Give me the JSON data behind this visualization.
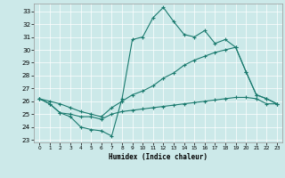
{
  "xlabel": "Humidex (Indice chaleur)",
  "bg_color": "#cce9e9",
  "grid_color": "#ffffff",
  "line_color": "#1a7a6e",
  "xlim": [
    -0.5,
    23.5
  ],
  "ylim": [
    22.8,
    33.6
  ],
  "xticks": [
    0,
    1,
    2,
    3,
    4,
    5,
    6,
    7,
    8,
    9,
    10,
    11,
    12,
    13,
    14,
    15,
    16,
    17,
    18,
    19,
    20,
    21,
    22,
    23
  ],
  "yticks": [
    23,
    24,
    25,
    26,
    27,
    28,
    29,
    30,
    31,
    32,
    33
  ],
  "series1_x": [
    0,
    1,
    2,
    3,
    4,
    5,
    6,
    7,
    8,
    9,
    10,
    11,
    12,
    13,
    14,
    15,
    16,
    17,
    18,
    19,
    20,
    21,
    22,
    23
  ],
  "series1_y": [
    26.2,
    25.8,
    25.1,
    24.8,
    24.0,
    23.8,
    23.7,
    23.3,
    26.2,
    30.8,
    31.0,
    32.5,
    33.3,
    32.2,
    31.2,
    31.0,
    31.5,
    30.5,
    30.8,
    30.2,
    28.3,
    26.5,
    26.2,
    25.8
  ],
  "series2_x": [
    0,
    1,
    2,
    3,
    4,
    5,
    6,
    7,
    8,
    9,
    10,
    11,
    12,
    13,
    14,
    15,
    16,
    17,
    18,
    19,
    20,
    21,
    22,
    23
  ],
  "series2_y": [
    26.2,
    26.0,
    25.8,
    25.5,
    25.2,
    25.0,
    24.8,
    25.5,
    26.0,
    26.5,
    26.8,
    27.2,
    27.8,
    28.2,
    28.8,
    29.2,
    29.5,
    29.8,
    30.0,
    30.2,
    28.3,
    26.5,
    26.2,
    25.8
  ],
  "series3_x": [
    0,
    1,
    2,
    3,
    4,
    5,
    6,
    7,
    8,
    9,
    10,
    11,
    12,
    13,
    14,
    15,
    16,
    17,
    18,
    19,
    20,
    21,
    22,
    23
  ],
  "series3_y": [
    26.2,
    25.8,
    25.1,
    25.0,
    24.8,
    24.8,
    24.6,
    25.0,
    25.2,
    25.3,
    25.4,
    25.5,
    25.6,
    25.7,
    25.8,
    25.9,
    26.0,
    26.1,
    26.2,
    26.3,
    26.3,
    26.2,
    25.8,
    25.8
  ]
}
